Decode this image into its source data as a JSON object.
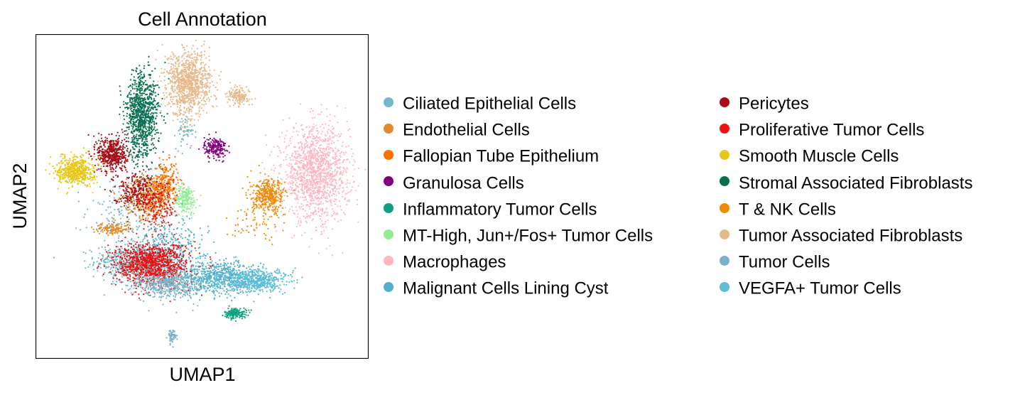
{
  "chart_data": {
    "type": "scatter",
    "title": "Cell Annotation",
    "xlabel": "UMAP1",
    "ylabel": "UMAP2",
    "xlim": [
      0,
      10
    ],
    "ylim": [
      0,
      10
    ],
    "grid": false,
    "ticks": false,
    "legend_position": "right, two columns",
    "series": [
      {
        "name": "Ciliated Epithelial Cells",
        "color": "#72b8c8",
        "clusters": [
          {
            "x": 3.0,
            "y": 3.0,
            "sx": 1.1,
            "sy": 0.45,
            "n": 600
          },
          {
            "x": 2.6,
            "y": 4.5,
            "sx": 1.0,
            "sy": 1.0,
            "n": 150
          },
          {
            "x": 4.5,
            "y": 7.0,
            "sx": 0.25,
            "sy": 0.5,
            "n": 60
          }
        ]
      },
      {
        "name": "Endothelial Cells",
        "color": "#e08b2e",
        "clusters": [
          {
            "x": 3.4,
            "y": 5.0,
            "sx": 0.6,
            "sy": 0.6,
            "n": 500
          },
          {
            "x": 2.3,
            "y": 4.0,
            "sx": 0.5,
            "sy": 0.15,
            "n": 150
          }
        ]
      },
      {
        "name": "Fallopian Tube Epithelium",
        "color": "#ff6f00",
        "clusters": [
          {
            "x": 3.9,
            "y": 5.4,
            "sx": 0.35,
            "sy": 0.6,
            "n": 250
          }
        ]
      },
      {
        "name": "Granulosa Cells",
        "color": "#800080",
        "clusters": [
          {
            "x": 5.4,
            "y": 6.5,
            "sx": 0.3,
            "sy": 0.3,
            "n": 200
          }
        ]
      },
      {
        "name": "Inflammatory Tumor Cells",
        "color": "#0f9e80",
        "clusters": [
          {
            "x": 6.0,
            "y": 1.4,
            "sx": 0.3,
            "sy": 0.15,
            "n": 160
          }
        ]
      },
      {
        "name": "MT-High, Jun+/Fos+ Tumor Cells",
        "color": "#90ee90",
        "clusters": [
          {
            "x": 4.5,
            "y": 4.9,
            "sx": 0.3,
            "sy": 0.4,
            "n": 200
          }
        ]
      },
      {
        "name": "Macrophages",
        "color": "#ffb6c1",
        "clusters": [
          {
            "x": 8.4,
            "y": 5.7,
            "sx": 0.9,
            "sy": 1.3,
            "n": 1400
          }
        ]
      },
      {
        "name": "Malignant Cells Lining Cyst",
        "color": "#4fb0cc",
        "clusters": [
          {
            "x": 5.5,
            "y": 2.5,
            "sx": 1.2,
            "sy": 0.45,
            "n": 700
          },
          {
            "x": 4.0,
            "y": 3.5,
            "sx": 1.0,
            "sy": 0.7,
            "n": 300
          }
        ]
      },
      {
        "name": "Pericytes",
        "color": "#a80c16",
        "clusters": [
          {
            "x": 2.3,
            "y": 6.3,
            "sx": 0.4,
            "sy": 0.5,
            "n": 500
          },
          {
            "x": 3.0,
            "y": 5.2,
            "sx": 0.6,
            "sy": 0.5,
            "n": 250
          }
        ]
      },
      {
        "name": "Proliferative Tumor Cells",
        "color": "#ee1010",
        "clusters": [
          {
            "x": 3.5,
            "y": 2.9,
            "sx": 1.0,
            "sy": 0.6,
            "n": 1100
          },
          {
            "x": 3.7,
            "y": 4.6,
            "sx": 0.5,
            "sy": 0.6,
            "n": 150
          }
        ]
      },
      {
        "name": "Smooth Muscle Cells",
        "color": "#e6c619",
        "clusters": [
          {
            "x": 1.2,
            "y": 5.8,
            "sx": 0.5,
            "sy": 0.4,
            "n": 550
          }
        ]
      },
      {
        "name": "Stromal Associated Fibroblasts",
        "color": "#06704f",
        "clusters": [
          {
            "x": 3.2,
            "y": 7.5,
            "sx": 0.45,
            "sy": 1.2,
            "n": 950
          }
        ]
      },
      {
        "name": "T & NK Cells",
        "color": "#f08a0a",
        "clusters": [
          {
            "x": 7.0,
            "y": 5.0,
            "sx": 0.45,
            "sy": 0.45,
            "n": 400
          },
          {
            "x": 6.6,
            "y": 4.2,
            "sx": 0.8,
            "sy": 0.5,
            "n": 60
          }
        ]
      },
      {
        "name": "Tumor Associated Fibroblasts",
        "color": "#e6b98c",
        "clusters": [
          {
            "x": 4.6,
            "y": 8.5,
            "sx": 0.6,
            "sy": 0.9,
            "n": 1000
          },
          {
            "x": 6.1,
            "y": 8.1,
            "sx": 0.3,
            "sy": 0.25,
            "n": 150
          }
        ]
      },
      {
        "name": "Tumor Cells",
        "color": "#7ab3c6",
        "clusters": [
          {
            "x": 4.0,
            "y": 2.3,
            "sx": 1.0,
            "sy": 0.4,
            "n": 500
          },
          {
            "x": 4.1,
            "y": 0.7,
            "sx": 0.12,
            "sy": 0.18,
            "n": 60
          }
        ]
      },
      {
        "name": "VEGFA+ Tumor Cells",
        "color": "#5bbdd6",
        "clusters": [
          {
            "x": 6.6,
            "y": 2.4,
            "sx": 0.9,
            "sy": 0.3,
            "n": 500
          }
        ]
      }
    ]
  }
}
